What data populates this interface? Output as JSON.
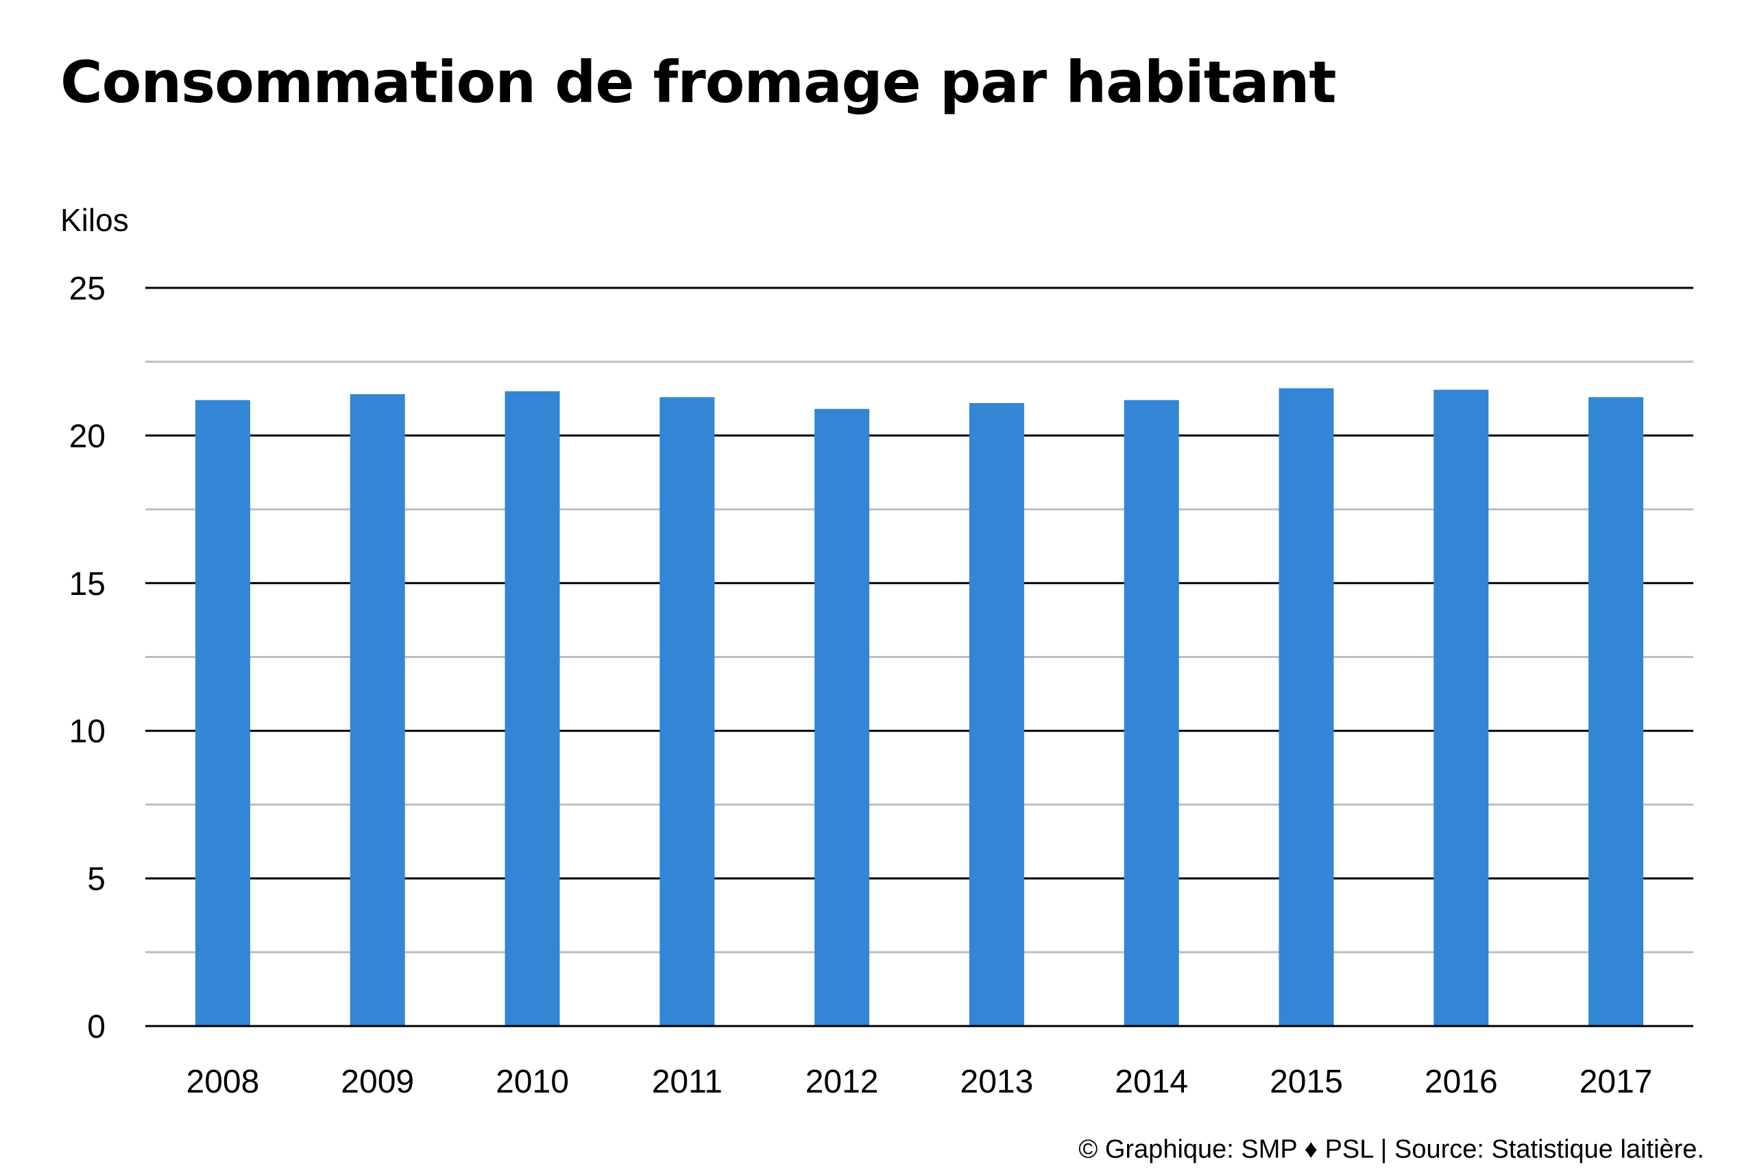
{
  "chart_data": {
    "type": "bar",
    "title": "Consommation de fromage par habitant",
    "ylabel": "Kilos",
    "xlabel": "",
    "categories": [
      "2008",
      "2009",
      "2010",
      "2011",
      "2012",
      "2013",
      "2014",
      "2015",
      "2016",
      "2017"
    ],
    "values": [
      21.2,
      21.4,
      21.5,
      21.3,
      20.9,
      21.1,
      21.2,
      21.6,
      21.55,
      21.3
    ],
    "ylim": [
      0,
      25
    ],
    "yticks": [
      "0",
      "5",
      "10",
      "15",
      "20",
      "25"
    ],
    "minor_gridlines": [
      2.5,
      7.5,
      12.5,
      17.5,
      22.5
    ],
    "grid": true,
    "legend": "none",
    "bar_color": "#3385d6",
    "major_grid_color": "#000000",
    "minor_grid_color": "#bdbdbd"
  },
  "footer": {
    "credit": "© Graphique: SMP ♦ PSL | Source: Statistique laitière."
  }
}
